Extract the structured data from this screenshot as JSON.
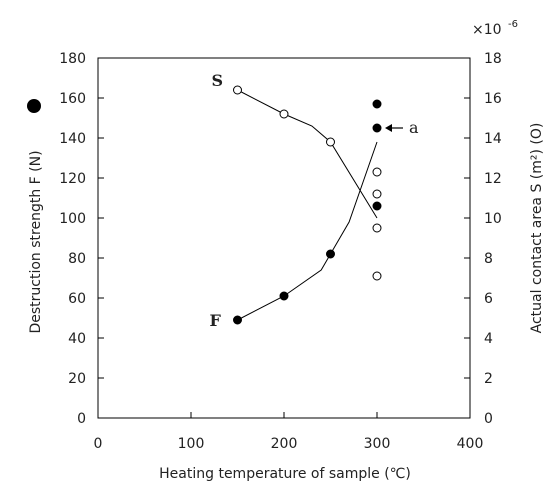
{
  "chart_data": {
    "type": "scatter",
    "xlabel": "Heating temperature of sample (℃)",
    "ylabel_left": "Destruction strength F (N)",
    "ylabel_right": "Actual contact area S (m²) (O)",
    "right_axis_multiplier": "×10",
    "right_axis_exponent": "-6",
    "xlim": [
      0,
      400
    ],
    "ylim_left": [
      0,
      180
    ],
    "ylim_right": [
      0,
      18
    ],
    "x_ticks": [
      0,
      100,
      200,
      300,
      400
    ],
    "y_ticks_left": [
      0,
      20,
      40,
      60,
      80,
      100,
      120,
      140,
      160,
      180
    ],
    "y_ticks_right": [
      0,
      2,
      4,
      6,
      8,
      10,
      12,
      14,
      16,
      18
    ],
    "grid": false,
    "series": [
      {
        "name": "F",
        "marker": "filled-circle",
        "axis": "left",
        "x": [
          150,
          200,
          250,
          300,
          300,
          300
        ],
        "y": [
          49,
          61,
          82,
          106,
          145,
          157
        ],
        "trend_line": [
          [
            150,
            49
          ],
          [
            200,
            61
          ],
          [
            240,
            74
          ],
          [
            270,
            98
          ],
          [
            300,
            138
          ]
        ]
      },
      {
        "name": "S",
        "marker": "open-circle",
        "axis": "right",
        "x": [
          150,
          200,
          250,
          300,
          300,
          300,
          300
        ],
        "y": [
          16.4,
          15.2,
          13.8,
          12.3,
          11.2,
          9.5,
          7.1
        ],
        "trend_line": [
          [
            150,
            16.4
          ],
          [
            200,
            15.2
          ],
          [
            230,
            14.6
          ],
          [
            250,
            13.8
          ],
          [
            300,
            10.0
          ]
        ]
      }
    ],
    "annotations": [
      {
        "text": "S",
        "series": "S"
      },
      {
        "text": "F",
        "series": "F"
      },
      {
        "text": "a",
        "target_x": 300,
        "target_y": 145,
        "arrow": true
      }
    ],
    "colors": {
      "axis": "#000000",
      "marker": "#000000",
      "line": "#000000"
    }
  }
}
